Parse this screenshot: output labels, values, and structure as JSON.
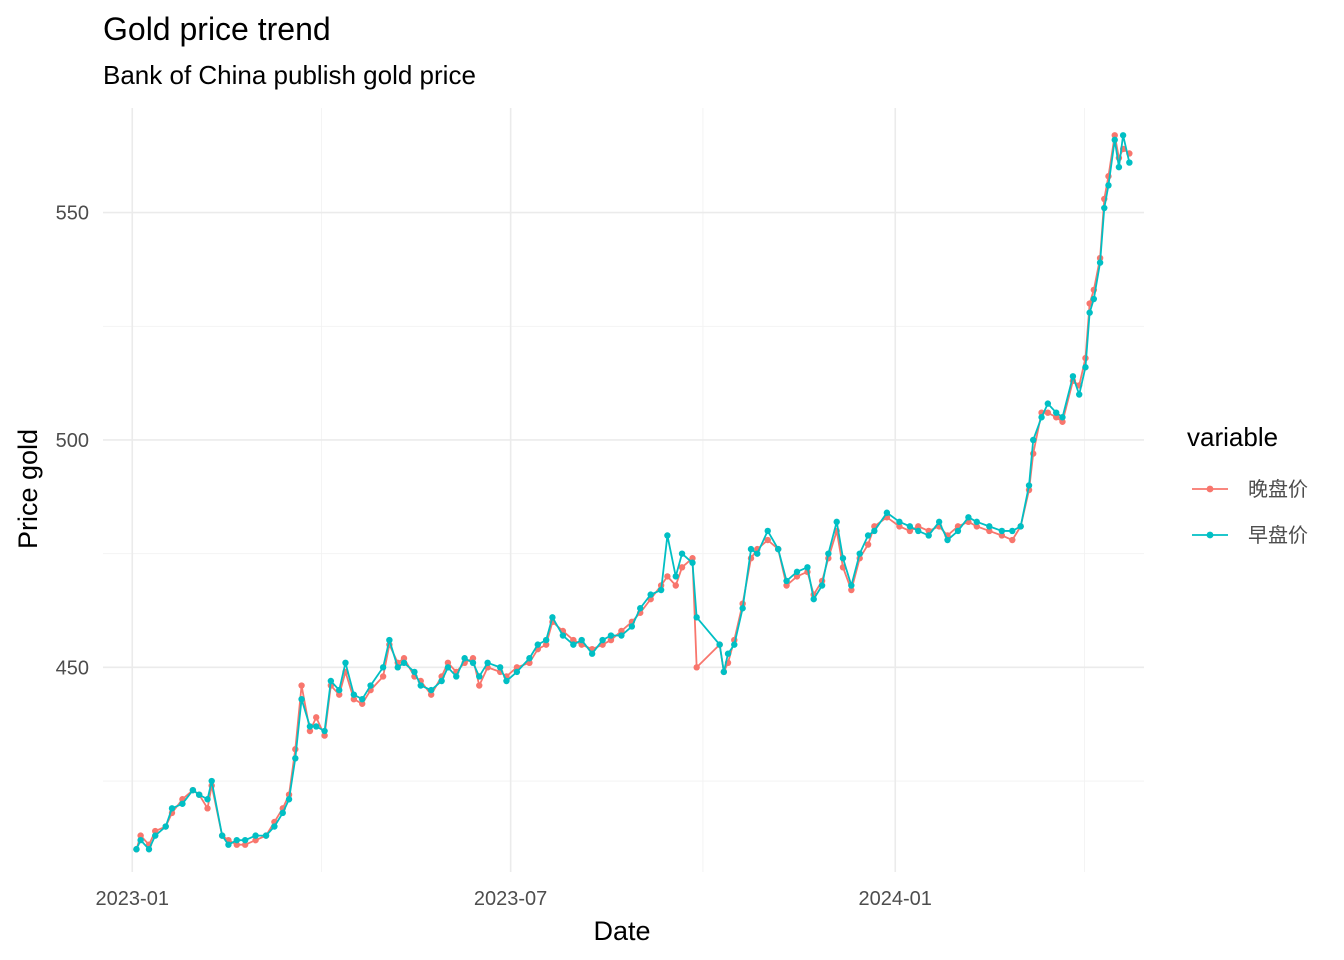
{
  "chart_data": {
    "type": "line",
    "title": "Gold price trend",
    "subtitle": "Bank of China publish gold price",
    "xlabel": "Date",
    "ylabel": "Price gold",
    "x_ticks": [
      "2023-01",
      "2023-07",
      "2024-01"
    ],
    "y_ticks": [
      450,
      500,
      550
    ],
    "xlim": [
      "2022-12-18",
      "2024-04-29"
    ],
    "ylim": [
      405,
      573
    ],
    "grid": true,
    "markers": true,
    "legend": {
      "title": "variable",
      "position": "right"
    },
    "series": [
      {
        "name": "晚盘价",
        "color": "#F8766D",
        "points": [
          [
            "2023-01-03",
            410
          ],
          [
            "2023-01-05",
            413
          ],
          [
            "2023-01-09",
            411
          ],
          [
            "2023-01-12",
            414
          ],
          [
            "2023-01-17",
            415
          ],
          [
            "2023-01-20",
            418
          ],
          [
            "2023-01-25",
            421
          ],
          [
            "2023-01-30",
            423
          ],
          [
            "2023-02-02",
            422
          ],
          [
            "2023-02-06",
            419
          ],
          [
            "2023-02-08",
            424
          ],
          [
            "2023-02-13",
            413
          ],
          [
            "2023-02-16",
            412
          ],
          [
            "2023-02-20",
            411
          ],
          [
            "2023-02-24",
            411
          ],
          [
            "2023-03-01",
            412
          ],
          [
            "2023-03-06",
            413
          ],
          [
            "2023-03-10",
            416
          ],
          [
            "2023-03-14",
            419
          ],
          [
            "2023-03-17",
            422
          ],
          [
            "2023-03-20",
            432
          ],
          [
            "2023-03-23",
            446
          ],
          [
            "2023-03-27",
            436
          ],
          [
            "2023-03-30",
            439
          ],
          [
            "2023-04-03",
            435
          ],
          [
            "2023-04-06",
            446
          ],
          [
            "2023-04-10",
            444
          ],
          [
            "2023-04-13",
            449
          ],
          [
            "2023-04-17",
            443
          ],
          [
            "2023-04-21",
            442
          ],
          [
            "2023-04-25",
            445
          ],
          [
            "2023-05-01",
            448
          ],
          [
            "2023-05-04",
            455
          ],
          [
            "2023-05-08",
            451
          ],
          [
            "2023-05-11",
            452
          ],
          [
            "2023-05-16",
            448
          ],
          [
            "2023-05-19",
            447
          ],
          [
            "2023-05-24",
            444
          ],
          [
            "2023-05-29",
            448
          ],
          [
            "2023-06-01",
            451
          ],
          [
            "2023-06-05",
            449
          ],
          [
            "2023-06-09",
            451
          ],
          [
            "2023-06-13",
            452
          ],
          [
            "2023-06-16",
            446
          ],
          [
            "2023-06-20",
            450
          ],
          [
            "2023-06-26",
            449
          ],
          [
            "2023-06-29",
            448
          ],
          [
            "2023-07-04",
            450
          ],
          [
            "2023-07-10",
            451
          ],
          [
            "2023-07-14",
            454
          ],
          [
            "2023-07-18",
            455
          ],
          [
            "2023-07-21",
            460
          ],
          [
            "2023-07-26",
            458
          ],
          [
            "2023-07-31",
            456
          ],
          [
            "2023-08-04",
            455
          ],
          [
            "2023-08-09",
            454
          ],
          [
            "2023-08-14",
            455
          ],
          [
            "2023-08-18",
            456
          ],
          [
            "2023-08-23",
            458
          ],
          [
            "2023-08-28",
            460
          ],
          [
            "2023-09-01",
            462
          ],
          [
            "2023-09-06",
            465
          ],
          [
            "2023-09-11",
            468
          ],
          [
            "2023-09-14",
            470
          ],
          [
            "2023-09-18",
            468
          ],
          [
            "2023-09-21",
            472
          ],
          [
            "2023-09-26",
            474
          ],
          [
            "2023-09-28",
            450
          ],
          [
            "2023-10-09",
            455
          ],
          [
            "2023-10-11",
            449
          ],
          [
            "2023-10-13",
            451
          ],
          [
            "2023-10-16",
            456
          ],
          [
            "2023-10-20",
            464
          ],
          [
            "2023-10-24",
            474
          ],
          [
            "2023-10-27",
            476
          ],
          [
            "2023-11-01",
            478
          ],
          [
            "2023-11-06",
            476
          ],
          [
            "2023-11-10",
            468
          ],
          [
            "2023-11-15",
            470
          ],
          [
            "2023-11-20",
            471
          ],
          [
            "2023-11-23",
            466
          ],
          [
            "2023-11-27",
            469
          ],
          [
            "2023-11-30",
            474
          ],
          [
            "2023-12-04",
            480
          ],
          [
            "2023-12-07",
            472
          ],
          [
            "2023-12-11",
            467
          ],
          [
            "2023-12-15",
            474
          ],
          [
            "2023-12-19",
            477
          ],
          [
            "2023-12-22",
            481
          ],
          [
            "2023-12-28",
            483
          ],
          [
            "2024-01-03",
            481
          ],
          [
            "2024-01-08",
            480
          ],
          [
            "2024-01-12",
            481
          ],
          [
            "2024-01-17",
            480
          ],
          [
            "2024-01-22",
            481
          ],
          [
            "2024-01-26",
            479
          ],
          [
            "2024-01-31",
            481
          ],
          [
            "2024-02-05",
            482
          ],
          [
            "2024-02-09",
            481
          ],
          [
            "2024-02-15",
            480
          ],
          [
            "2024-02-21",
            479
          ],
          [
            "2024-02-26",
            478
          ],
          [
            "2024-03-01",
            481
          ],
          [
            "2024-03-05",
            489
          ],
          [
            "2024-03-07",
            497
          ],
          [
            "2024-03-11",
            506
          ],
          [
            "2024-03-14",
            506
          ],
          [
            "2024-03-18",
            505
          ],
          [
            "2024-03-21",
            504
          ],
          [
            "2024-03-26",
            513
          ],
          [
            "2024-03-29",
            512
          ],
          [
            "2024-04-01",
            518
          ],
          [
            "2024-04-03",
            530
          ],
          [
            "2024-04-05",
            533
          ],
          [
            "2024-04-08",
            540
          ],
          [
            "2024-04-10",
            553
          ],
          [
            "2024-04-12",
            558
          ],
          [
            "2024-04-15",
            567
          ],
          [
            "2024-04-17",
            562
          ],
          [
            "2024-04-19",
            564
          ],
          [
            "2024-04-22",
            563
          ]
        ]
      },
      {
        "name": "早盘价",
        "color": "#00BFC4",
        "points": [
          [
            "2023-01-03",
            410
          ],
          [
            "2023-01-05",
            412
          ],
          [
            "2023-01-09",
            410
          ],
          [
            "2023-01-12",
            413
          ],
          [
            "2023-01-17",
            415
          ],
          [
            "2023-01-20",
            419
          ],
          [
            "2023-01-25",
            420
          ],
          [
            "2023-01-30",
            423
          ],
          [
            "2023-02-02",
            422
          ],
          [
            "2023-02-06",
            421
          ],
          [
            "2023-02-08",
            425
          ],
          [
            "2023-02-13",
            413
          ],
          [
            "2023-02-16",
            411
          ],
          [
            "2023-02-20",
            412
          ],
          [
            "2023-02-24",
            412
          ],
          [
            "2023-03-01",
            413
          ],
          [
            "2023-03-06",
            413
          ],
          [
            "2023-03-10",
            415
          ],
          [
            "2023-03-14",
            418
          ],
          [
            "2023-03-17",
            421
          ],
          [
            "2023-03-20",
            430
          ],
          [
            "2023-03-23",
            443
          ],
          [
            "2023-03-27",
            437
          ],
          [
            "2023-03-30",
            437
          ],
          [
            "2023-04-03",
            436
          ],
          [
            "2023-04-06",
            447
          ],
          [
            "2023-04-10",
            445
          ],
          [
            "2023-04-13",
            451
          ],
          [
            "2023-04-17",
            444
          ],
          [
            "2023-04-21",
            443
          ],
          [
            "2023-04-25",
            446
          ],
          [
            "2023-05-01",
            450
          ],
          [
            "2023-05-04",
            456
          ],
          [
            "2023-05-08",
            450
          ],
          [
            "2023-05-11",
            451
          ],
          [
            "2023-05-16",
            449
          ],
          [
            "2023-05-19",
            446
          ],
          [
            "2023-05-24",
            445
          ],
          [
            "2023-05-29",
            447
          ],
          [
            "2023-06-01",
            450
          ],
          [
            "2023-06-05",
            448
          ],
          [
            "2023-06-09",
            452
          ],
          [
            "2023-06-13",
            451
          ],
          [
            "2023-06-16",
            448
          ],
          [
            "2023-06-20",
            451
          ],
          [
            "2023-06-26",
            450
          ],
          [
            "2023-06-29",
            447
          ],
          [
            "2023-07-04",
            449
          ],
          [
            "2023-07-10",
            452
          ],
          [
            "2023-07-14",
            455
          ],
          [
            "2023-07-18",
            456
          ],
          [
            "2023-07-21",
            461
          ],
          [
            "2023-07-26",
            457
          ],
          [
            "2023-07-31",
            455
          ],
          [
            "2023-08-04",
            456
          ],
          [
            "2023-08-09",
            453
          ],
          [
            "2023-08-14",
            456
          ],
          [
            "2023-08-18",
            457
          ],
          [
            "2023-08-23",
            457
          ],
          [
            "2023-08-28",
            459
          ],
          [
            "2023-09-01",
            463
          ],
          [
            "2023-09-06",
            466
          ],
          [
            "2023-09-11",
            467
          ],
          [
            "2023-09-14",
            479
          ],
          [
            "2023-09-18",
            470
          ],
          [
            "2023-09-21",
            475
          ],
          [
            "2023-09-26",
            473
          ],
          [
            "2023-09-28",
            461
          ],
          [
            "2023-10-09",
            455
          ],
          [
            "2023-10-11",
            449
          ],
          [
            "2023-10-13",
            453
          ],
          [
            "2023-10-16",
            455
          ],
          [
            "2023-10-20",
            463
          ],
          [
            "2023-10-24",
            476
          ],
          [
            "2023-10-27",
            475
          ],
          [
            "2023-11-01",
            480
          ],
          [
            "2023-11-06",
            476
          ],
          [
            "2023-11-10",
            469
          ],
          [
            "2023-11-15",
            471
          ],
          [
            "2023-11-20",
            472
          ],
          [
            "2023-11-23",
            465
          ],
          [
            "2023-11-27",
            468
          ],
          [
            "2023-11-30",
            475
          ],
          [
            "2023-12-04",
            482
          ],
          [
            "2023-12-07",
            474
          ],
          [
            "2023-12-11",
            468
          ],
          [
            "2023-12-15",
            475
          ],
          [
            "2023-12-19",
            479
          ],
          [
            "2023-12-22",
            480
          ],
          [
            "2023-12-28",
            484
          ],
          [
            "2024-01-03",
            482
          ],
          [
            "2024-01-08",
            481
          ],
          [
            "2024-01-12",
            480
          ],
          [
            "2024-01-17",
            479
          ],
          [
            "2024-01-22",
            482
          ],
          [
            "2024-01-26",
            478
          ],
          [
            "2024-01-31",
            480
          ],
          [
            "2024-02-05",
            483
          ],
          [
            "2024-02-09",
            482
          ],
          [
            "2024-02-15",
            481
          ],
          [
            "2024-02-21",
            480
          ],
          [
            "2024-02-26",
            480
          ],
          [
            "2024-03-01",
            481
          ],
          [
            "2024-03-05",
            490
          ],
          [
            "2024-03-07",
            500
          ],
          [
            "2024-03-11",
            505
          ],
          [
            "2024-03-14",
            508
          ],
          [
            "2024-03-18",
            506
          ],
          [
            "2024-03-21",
            505
          ],
          [
            "2024-03-26",
            514
          ],
          [
            "2024-03-29",
            510
          ],
          [
            "2024-04-01",
            516
          ],
          [
            "2024-04-03",
            528
          ],
          [
            "2024-04-05",
            531
          ],
          [
            "2024-04-08",
            539
          ],
          [
            "2024-04-10",
            551
          ],
          [
            "2024-04-12",
            556
          ],
          [
            "2024-04-15",
            566
          ],
          [
            "2024-04-17",
            560
          ],
          [
            "2024-04-19",
            567
          ],
          [
            "2024-04-22",
            561
          ]
        ]
      }
    ]
  }
}
